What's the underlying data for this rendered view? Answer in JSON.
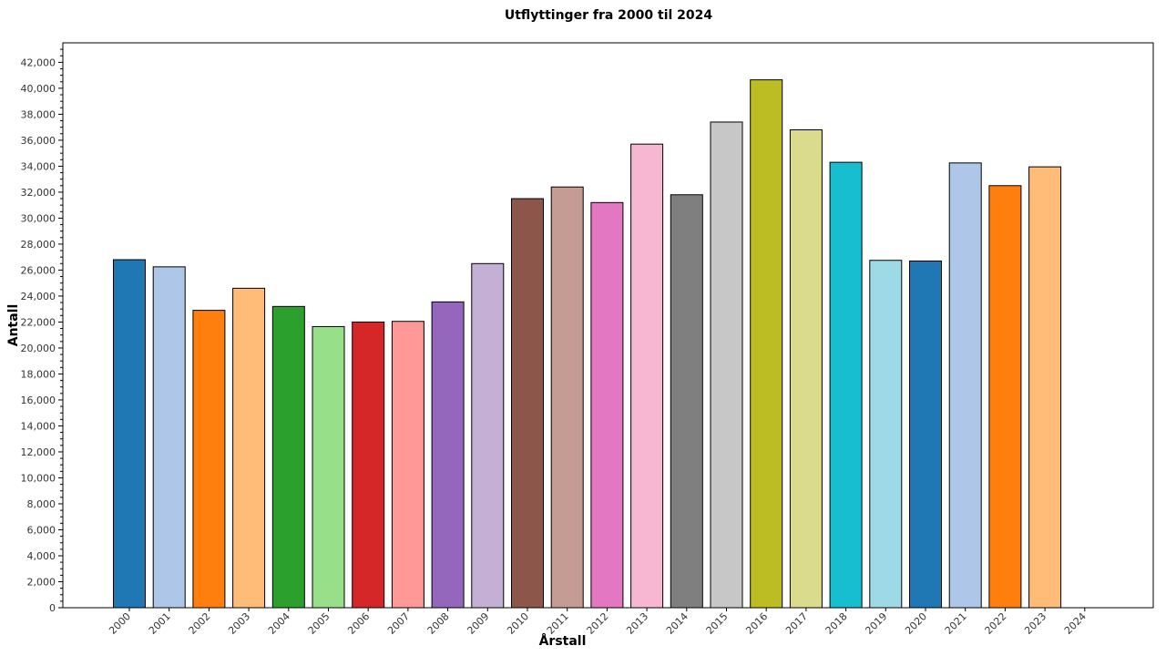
{
  "chart_data": {
    "type": "bar",
    "title": "Utflyttinger fra 2000 til 2024",
    "xlabel": "Årstall",
    "ylabel": "Antall",
    "categories": [
      "2000",
      "2001",
      "2002",
      "2003",
      "2004",
      "2005",
      "2006",
      "2007",
      "2008",
      "2009",
      "2010",
      "2011",
      "2012",
      "2013",
      "2014",
      "2015",
      "2016",
      "2017",
      "2018",
      "2019",
      "2020",
      "2021",
      "2022",
      "2023",
      "2024"
    ],
    "values": [
      26800,
      26250,
      22900,
      24600,
      23200,
      21650,
      22000,
      22050,
      23550,
      26500,
      31500,
      32400,
      31200,
      35700,
      31800,
      37400,
      40650,
      36800,
      34300,
      26750,
      26700,
      34250,
      32500,
      33950,
      0
    ],
    "colors": [
      "#1f77b4",
      "#aec7e8",
      "#ff7f0e",
      "#ffbb78",
      "#2ca02c",
      "#98df8a",
      "#d62728",
      "#ff9896",
      "#9467bd",
      "#c5b0d5",
      "#8c564b",
      "#c49c94",
      "#e377c2",
      "#f7b6d2",
      "#7f7f7f",
      "#c7c7c7",
      "#bcbd22",
      "#dbdb8d",
      "#17becf",
      "#9edae5",
      "#1f77b4",
      "#aec7e8",
      "#ff7f0e",
      "#ffbb78",
      "#2ca02c"
    ],
    "ylim": [
      0,
      43500
    ],
    "yticks": [
      "0",
      "2,000",
      "4,000",
      "6,000",
      "8,000",
      "10,000",
      "12,000",
      "14,000",
      "16,000",
      "18,000",
      "20,000",
      "22,000",
      "24,000",
      "26,000",
      "28,000",
      "30,000",
      "32,000",
      "34,000",
      "36,000",
      "38,000",
      "40,000",
      "42,000"
    ],
    "grid": false,
    "legend": "none"
  }
}
